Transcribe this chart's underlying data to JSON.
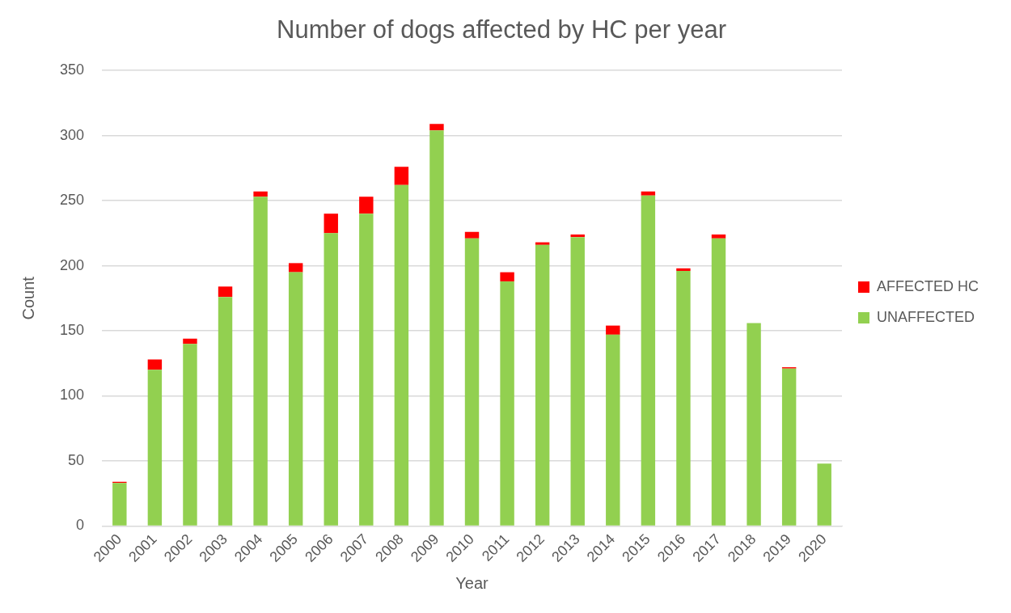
{
  "chart_data": {
    "type": "bar",
    "title": "Number of dogs affected by HC per year",
    "xlabel": "Year",
    "ylabel": "Count",
    "categories": [
      "2000",
      "2001",
      "2002",
      "2003",
      "2004",
      "2005",
      "2006",
      "2007",
      "2008",
      "2009",
      "2010",
      "2011",
      "2012",
      "2013",
      "2014",
      "2015",
      "2016",
      "2017",
      "2018",
      "2019",
      "2020"
    ],
    "series": [
      {
        "name": "UNAFFECTED",
        "color": "#92d050",
        "values": [
          33,
          120,
          140,
          176,
          253,
          195,
          225,
          240,
          262,
          304,
          221,
          188,
          216,
          222,
          147,
          254,
          196,
          221,
          156,
          121,
          48
        ]
      },
      {
        "name": "AFFECTED HC",
        "color": "#ff0000",
        "values": [
          1,
          8,
          4,
          8,
          4,
          7,
          15,
          13,
          14,
          5,
          5,
          7,
          2,
          2,
          7,
          3,
          2,
          3,
          0,
          1,
          0
        ]
      }
    ],
    "stacked": true,
    "ylim": [
      0,
      350
    ],
    "yticks": [
      0,
      50,
      100,
      150,
      200,
      250,
      300,
      350
    ],
    "grid": "y",
    "legend": "right"
  }
}
